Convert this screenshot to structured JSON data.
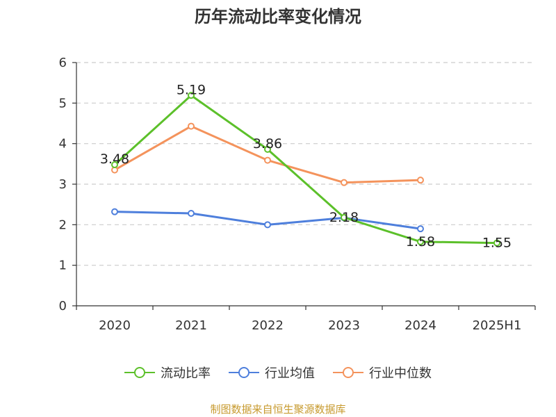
{
  "source_text": "制图数据来自恒生聚源数据库",
  "chart_data": {
    "type": "line",
    "title": "历年流动比率变化情况",
    "xlabel": "",
    "ylabel": "",
    "categories": [
      "2020",
      "2021",
      "2022",
      "2023",
      "2024",
      "2025H1"
    ],
    "ylim": [
      0,
      6
    ],
    "yticks": [
      "0",
      "1",
      "2",
      "3",
      "4",
      "5",
      "6"
    ],
    "grid": "horizontal-dashed",
    "legend_position": "bottom",
    "series": [
      {
        "name": "流动比率",
        "color": "#5cc02a",
        "values": [
          3.48,
          5.19,
          3.86,
          2.18,
          1.58,
          1.55
        ],
        "labels": [
          "3.48",
          "5.19",
          "3.86",
          "2.18",
          "1.58",
          "1.55"
        ]
      },
      {
        "name": "行业均值",
        "color": "#4e7fdc",
        "values": [
          2.32,
          2.28,
          2.0,
          2.17,
          1.9,
          null
        ]
      },
      {
        "name": "行业中位数",
        "color": "#f4935c",
        "values": [
          3.35,
          4.43,
          3.59,
          3.04,
          3.1,
          null
        ]
      }
    ]
  }
}
